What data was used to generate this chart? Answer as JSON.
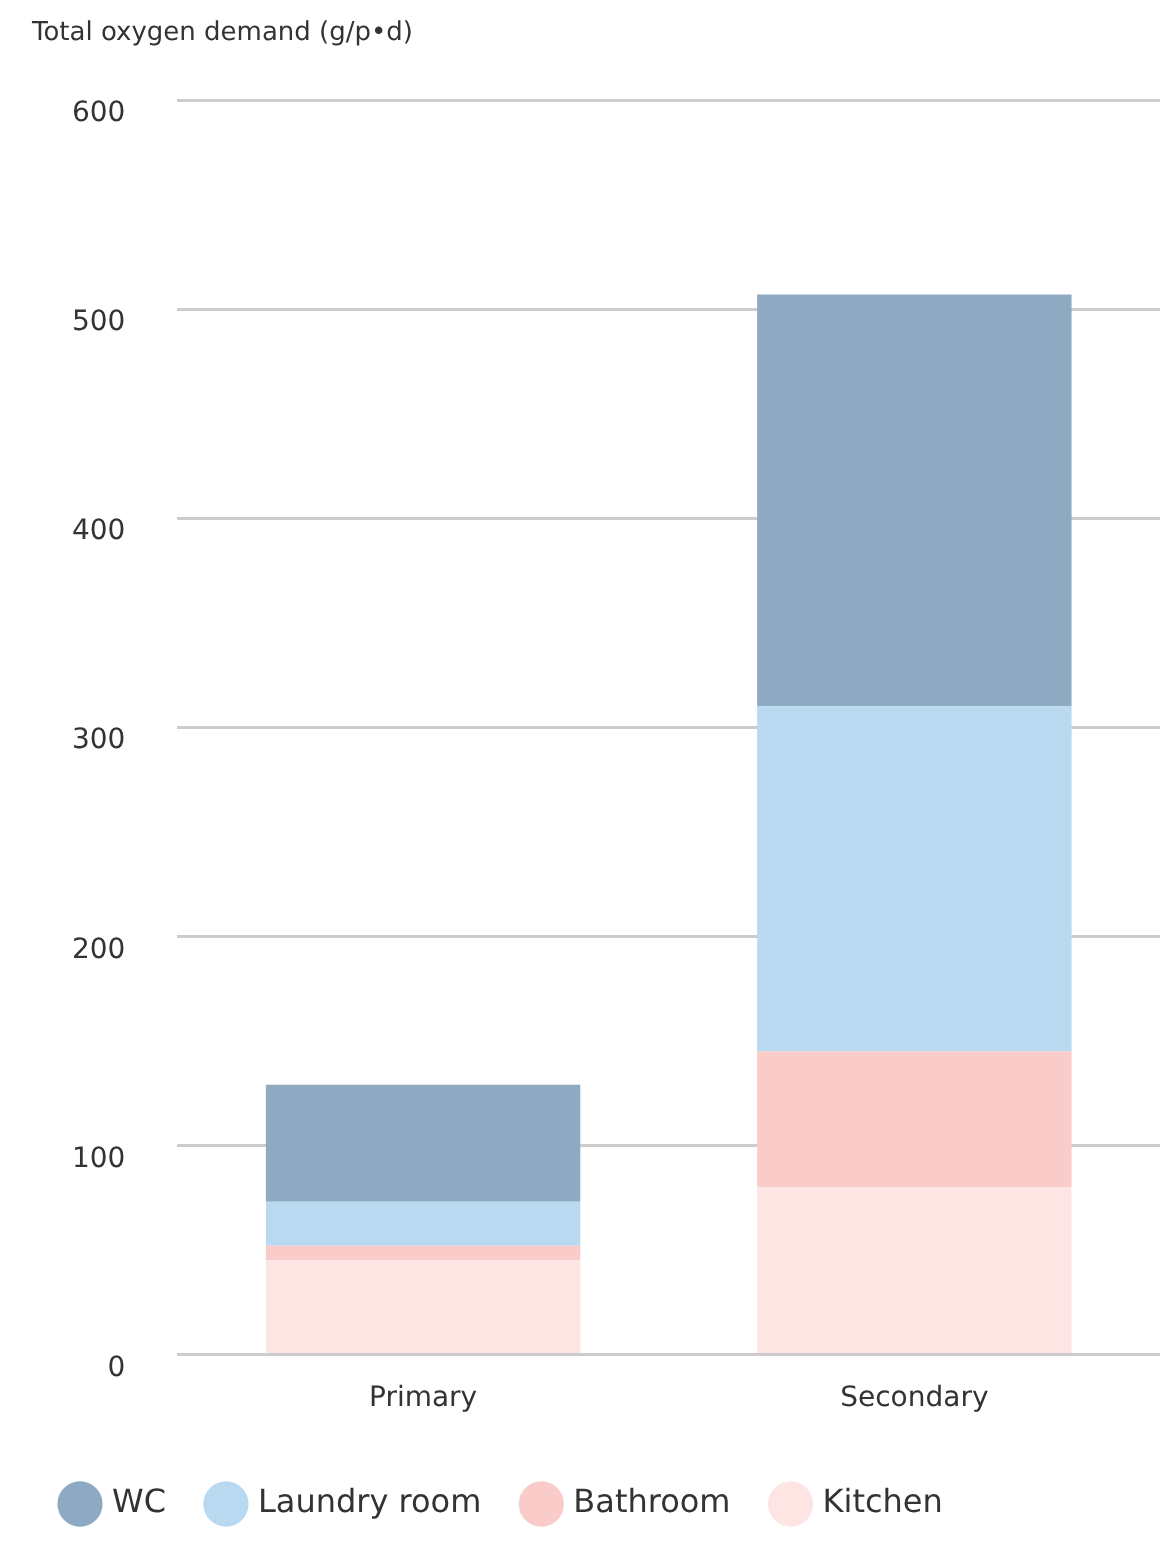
{
  "chart_data": {
    "type": "bar",
    "stacked": true,
    "ylabel": "Total oxygen demand (g/p•d)",
    "categories": [
      "Primary",
      "Secondary"
    ],
    "series": [
      {
        "name": "Kitchen",
        "color": "#fde5e4",
        "values": [
          45,
          80
        ]
      },
      {
        "name": "Bathroom",
        "color": "#f9ccc9",
        "values": [
          7,
          65
        ]
      },
      {
        "name": "Laundry room",
        "color": "#b9d9f1",
        "values": [
          21,
          165
        ]
      },
      {
        "name": "WC",
        "color": "#8eaac2",
        "values": [
          56,
          197
        ]
      }
    ],
    "ylim": [
      0,
      600
    ],
    "yticks": [
      0,
      100,
      200,
      300,
      400,
      500,
      600
    ],
    "grid": "y",
    "legend": "bottom"
  }
}
